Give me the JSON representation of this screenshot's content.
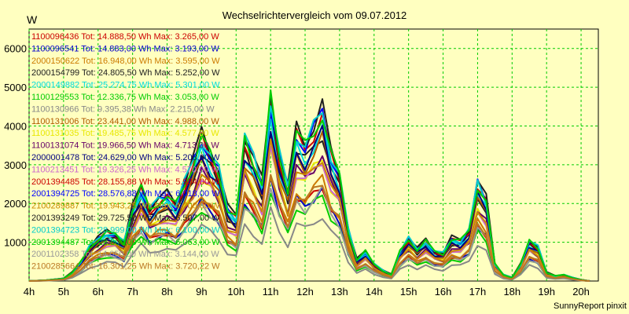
{
  "colors": {
    "background": "#ffffc0",
    "grid": "#00cc00"
  },
  "chart_data": {
    "type": "line",
    "title": "Wechselrichtervergleich vom 09.07.2012",
    "ylabel": "W",
    "xlabel": "",
    "footer": "SunnyReport pinxit",
    "grid": true,
    "legend_position": "top-left, inside plot",
    "x_ticks": [
      "4h",
      "5h",
      "6h",
      "7h",
      "8h",
      "9h",
      "10h",
      "11h",
      "12h",
      "13h",
      "14h",
      "15h",
      "16h",
      "17h",
      "18h",
      "19h",
      "20h"
    ],
    "xlim": [
      4,
      20.5
    ],
    "ylim": [
      0,
      6500
    ],
    "y_ticks": [
      1000,
      2000,
      3000,
      4000,
      5000,
      6000
    ],
    "x": [
      4.0,
      4.5,
      5.0,
      5.25,
      5.5,
      5.75,
      6.0,
      6.25,
      6.5,
      6.75,
      7.0,
      7.25,
      7.5,
      7.75,
      8.0,
      8.25,
      8.5,
      8.75,
      9.0,
      9.25,
      9.5,
      9.75,
      10.0,
      10.25,
      10.5,
      10.75,
      11.0,
      11.25,
      11.5,
      11.75,
      12.0,
      12.25,
      12.5,
      12.75,
      13.0,
      13.25,
      13.5,
      13.75,
      14.0,
      14.25,
      14.5,
      14.75,
      15.0,
      15.25,
      15.5,
      15.75,
      16.0,
      16.25,
      16.5,
      16.75,
      17.0,
      17.25,
      17.5,
      17.75,
      18.0,
      18.25,
      18.5,
      18.75,
      19.0,
      19.25,
      19.5,
      19.75,
      20.0,
      20.25
    ],
    "series": [
      {
        "label": "1100096436 Tot: 14.888,50 Wh Max: 3.265,00 W",
        "color": "#cc0000",
        "scale": 0.62
      },
      {
        "label": "1100096541 Tot: 14.883,00 Wh Max: 3.193,00 W",
        "color": "#0000cc",
        "scale": 0.6
      },
      {
        "label": "2000150622 Tot: 16.948,00 Wh Max: 3.595,00 W",
        "color": "#cc7a00",
        "scale": 0.66
      },
      {
        "label": "2000154799 Tot: 24.805,50 Wh Max: 5.252,00 W",
        "color": "#202020",
        "scale": 0.96
      },
      {
        "label": "2000149882 Tot: 25.274,75 Wh Max: 5.301,00 W",
        "color": "#00dddd",
        "scale": 0.97
      },
      {
        "label": "1100129553 Tot: 12.336,75 Wh Max: 3.053,00 W",
        "color": "#00cc00",
        "scale": 0.55
      },
      {
        "label": "1100130966 Tot: 9.395,38 Wh Max: 2.215,00 W",
        "color": "#888888",
        "scale": 0.42
      },
      {
        "label": "1100131006 Tot: 23.441,00 Wh Max: 4.988,00 W",
        "color": "#b05a00",
        "scale": 0.91
      },
      {
        "label": "1100131035 Tot: 19.485,75 Wh Max: 4.577,00 W",
        "color": "#e8e800",
        "scale": 0.8
      },
      {
        "label": "1100131074 Tot: 19.966,50 Wh Max: 4.713,00 W",
        "color": "#660066",
        "scale": 0.82
      },
      {
        "label": "2000001478 Tot: 24.629,00 Wh Max: 5.208,00 W",
        "color": "#000080",
        "scale": 0.95
      },
      {
        "label": "1100213451 Tot: 19.326,25 Wh Max: 4.570,00 W",
        "color": "#cc66cc",
        "scale": 0.79
      },
      {
        "label": "2001394485 Tot: 28.155,88 Wh Max: 5.934,00 W",
        "color": "#cc0000",
        "scale": 1.06
      },
      {
        "label": "2001394725 Tot: 28.576,88 Wh Max: 6.018,00 W",
        "color": "#0000ff",
        "scale": 1.08
      },
      {
        "label": "2100289887 Tot: 19.943,25 Wh Max: 4.700,00 W",
        "color": "#cc8800",
        "scale": 0.81
      },
      {
        "label": "2001393249 Tot: 29.725,50 Wh Max: 6.507,00 W",
        "color": "#202020",
        "scale": 1.12
      },
      {
        "label": "2001394723 Tot: 28.999,00 Wh Max: 6.100,00 W",
        "color": "#00cccc",
        "scale": 1.09
      },
      {
        "label": "2001394487 Tot: 28.800,00 Wh Max: 6.063,00 W",
        "color": "#00cc00",
        "scale": 1.08
      },
      {
        "label": "2001102358 Tot: 14.050,00 Wh Max: 3.144,00 W",
        "color": "#999999",
        "scale": 0.58
      },
      {
        "label": "2100285664 Tot: 16.301,25 Wh Max: 3.720,22 W",
        "color": "#bb7722",
        "scale": 0.64
      }
    ],
    "base_profile": [
      0,
      20,
      60,
      200,
      450,
      800,
      1000,
      1150,
      1100,
      900,
      1700,
      2200,
      1700,
      1900,
      2000,
      1800,
      2300,
      2800,
      3400,
      3000,
      2600,
      1700,
      1500,
      3400,
      2900,
      2300,
      4300,
      3000,
      2200,
      3500,
      3200,
      3600,
      4000,
      3000,
      2500,
      1200,
      500,
      700,
      400,
      250,
      150,
      700,
      1000,
      750,
      950,
      700,
      650,
      1000,
      950,
      1200,
      2300,
      1900,
      400,
      150,
      80,
      400,
      950,
      800,
      200,
      120,
      150,
      80,
      30,
      0
    ]
  }
}
